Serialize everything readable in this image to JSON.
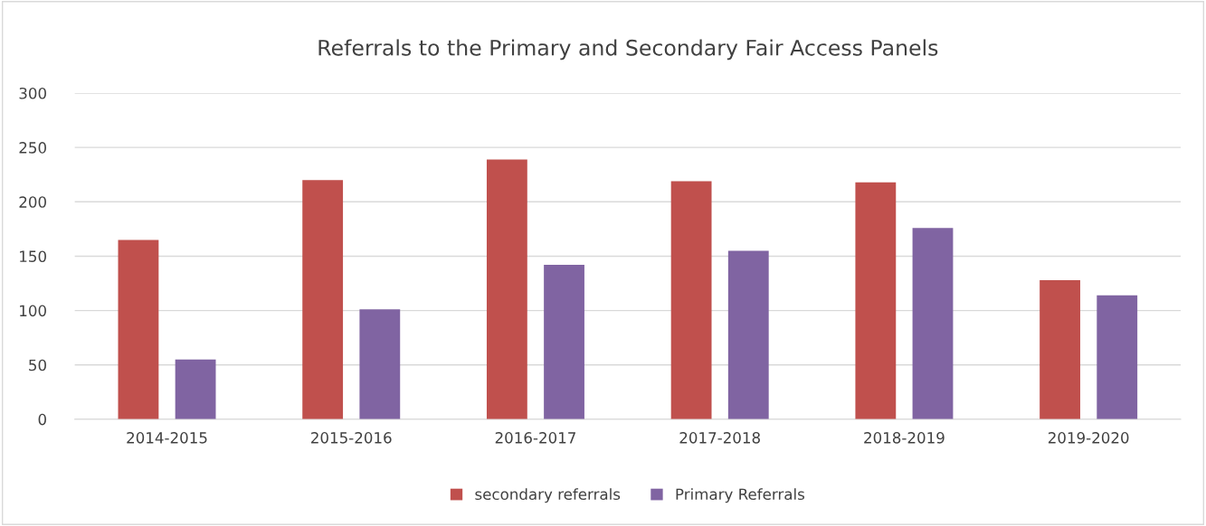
{
  "chart_data": {
    "type": "bar",
    "title": "Referrals to the Primary and Secondary Fair Access Panels",
    "categories": [
      "2014-2015",
      "2015-2016",
      "2016-2017",
      "2017-2018",
      "2018-2019",
      "2019-2020"
    ],
    "series": [
      {
        "name": "secondary referrals",
        "color": "#c0504d",
        "values": [
          165,
          220,
          239,
          219,
          218,
          128
        ]
      },
      {
        "name": "Primary Referrals",
        "color": "#8064a2",
        "values": [
          55,
          101,
          142,
          155,
          176,
          114
        ]
      }
    ],
    "ylim": [
      0,
      300
    ],
    "yticks": [
      0,
      50,
      100,
      150,
      200,
      250,
      300
    ],
    "grid": "y",
    "legend": "bottom"
  }
}
